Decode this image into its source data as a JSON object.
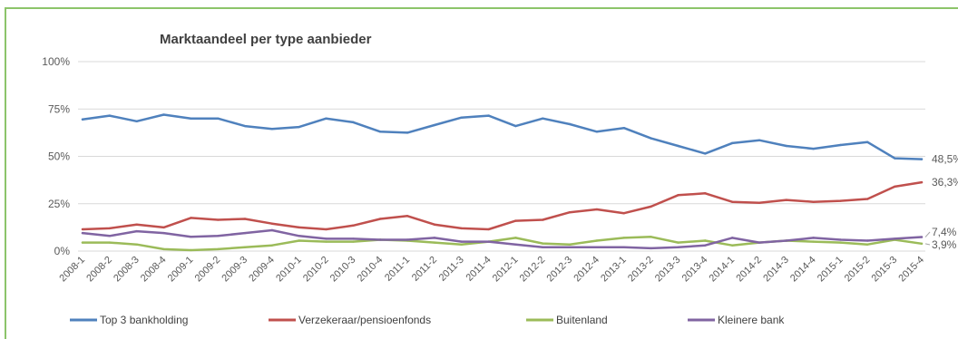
{
  "chart_data": {
    "type": "line",
    "title": "Marktaandeel per type aanbieder",
    "categories": [
      "2008-1",
      "2008-2",
      "2008-3",
      "2008-4",
      "2009-1",
      "2009-2",
      "2009-3",
      "2009-4",
      "2010-1",
      "2010-2",
      "2010-3",
      "2010-4",
      "2011-1",
      "2011-2",
      "2011-3",
      "2011-4",
      "2012-1",
      "2012-2",
      "2012-3",
      "2012-4",
      "2013-1",
      "2013-2",
      "2013-3",
      "2013-4",
      "2014-1",
      "2014-2",
      "2014-3",
      "2014-4",
      "2015-1",
      "2015-2",
      "2015-3",
      "2015-4"
    ],
    "y_ticks": [
      "0%",
      "25%",
      "50%",
      "75%",
      "100%"
    ],
    "ylim": [
      0,
      100
    ],
    "series": [
      {
        "name": "Top 3 bankholding",
        "color": "#4f81bd",
        "values": [
          69.5,
          71.5,
          68.5,
          72,
          70,
          70,
          66,
          64.5,
          65.5,
          70,
          68,
          63,
          62.5,
          66.5,
          70.5,
          71.5,
          66,
          70,
          67,
          63,
          65,
          59.5,
          55.5,
          51.5,
          57,
          58.5,
          55.5,
          54,
          56,
          57.5,
          49,
          48.5
        ],
        "end_label": "48,5%"
      },
      {
        "name": "Verzekeraar/pensioenfonds",
        "color": "#c0504d",
        "values": [
          11.5,
          12,
          14,
          12.5,
          17.5,
          16.5,
          17,
          14.5,
          12.5,
          11.5,
          13.5,
          17,
          18.5,
          14,
          12,
          11.5,
          16,
          16.5,
          20.5,
          22,
          20,
          23.5,
          29.5,
          30.5,
          26,
          25.5,
          27,
          26,
          26.5,
          27.5,
          34,
          36.3
        ],
        "end_label": "36,3%"
      },
      {
        "name": "Buitenland",
        "color": "#9bbb59",
        "values": [
          4.5,
          4.5,
          3.5,
          1,
          0.5,
          1,
          2,
          3,
          5.5,
          5,
          5,
          6,
          5.5,
          4.5,
          3.5,
          5,
          7,
          4,
          3.5,
          5.5,
          7,
          7.5,
          4.5,
          5.5,
          3,
          4.5,
          5.5,
          5,
          4.5,
          3.5,
          6,
          3.9
        ],
        "end_label": "3,9%"
      },
      {
        "name": "Kleinere bank",
        "color": "#8064a2",
        "values": [
          9.5,
          8,
          10.5,
          9.5,
          7.5,
          8,
          9.5,
          11,
          8,
          6.5,
          6.5,
          6,
          6,
          7,
          5,
          5,
          3.5,
          2,
          2,
          2,
          2,
          1.5,
          2,
          3,
          7,
          4.5,
          5.5,
          7,
          6,
          5.5,
          6.5,
          7.4
        ],
        "end_label": "7,4%"
      }
    ],
    "grid": true,
    "legend": "bottom"
  }
}
